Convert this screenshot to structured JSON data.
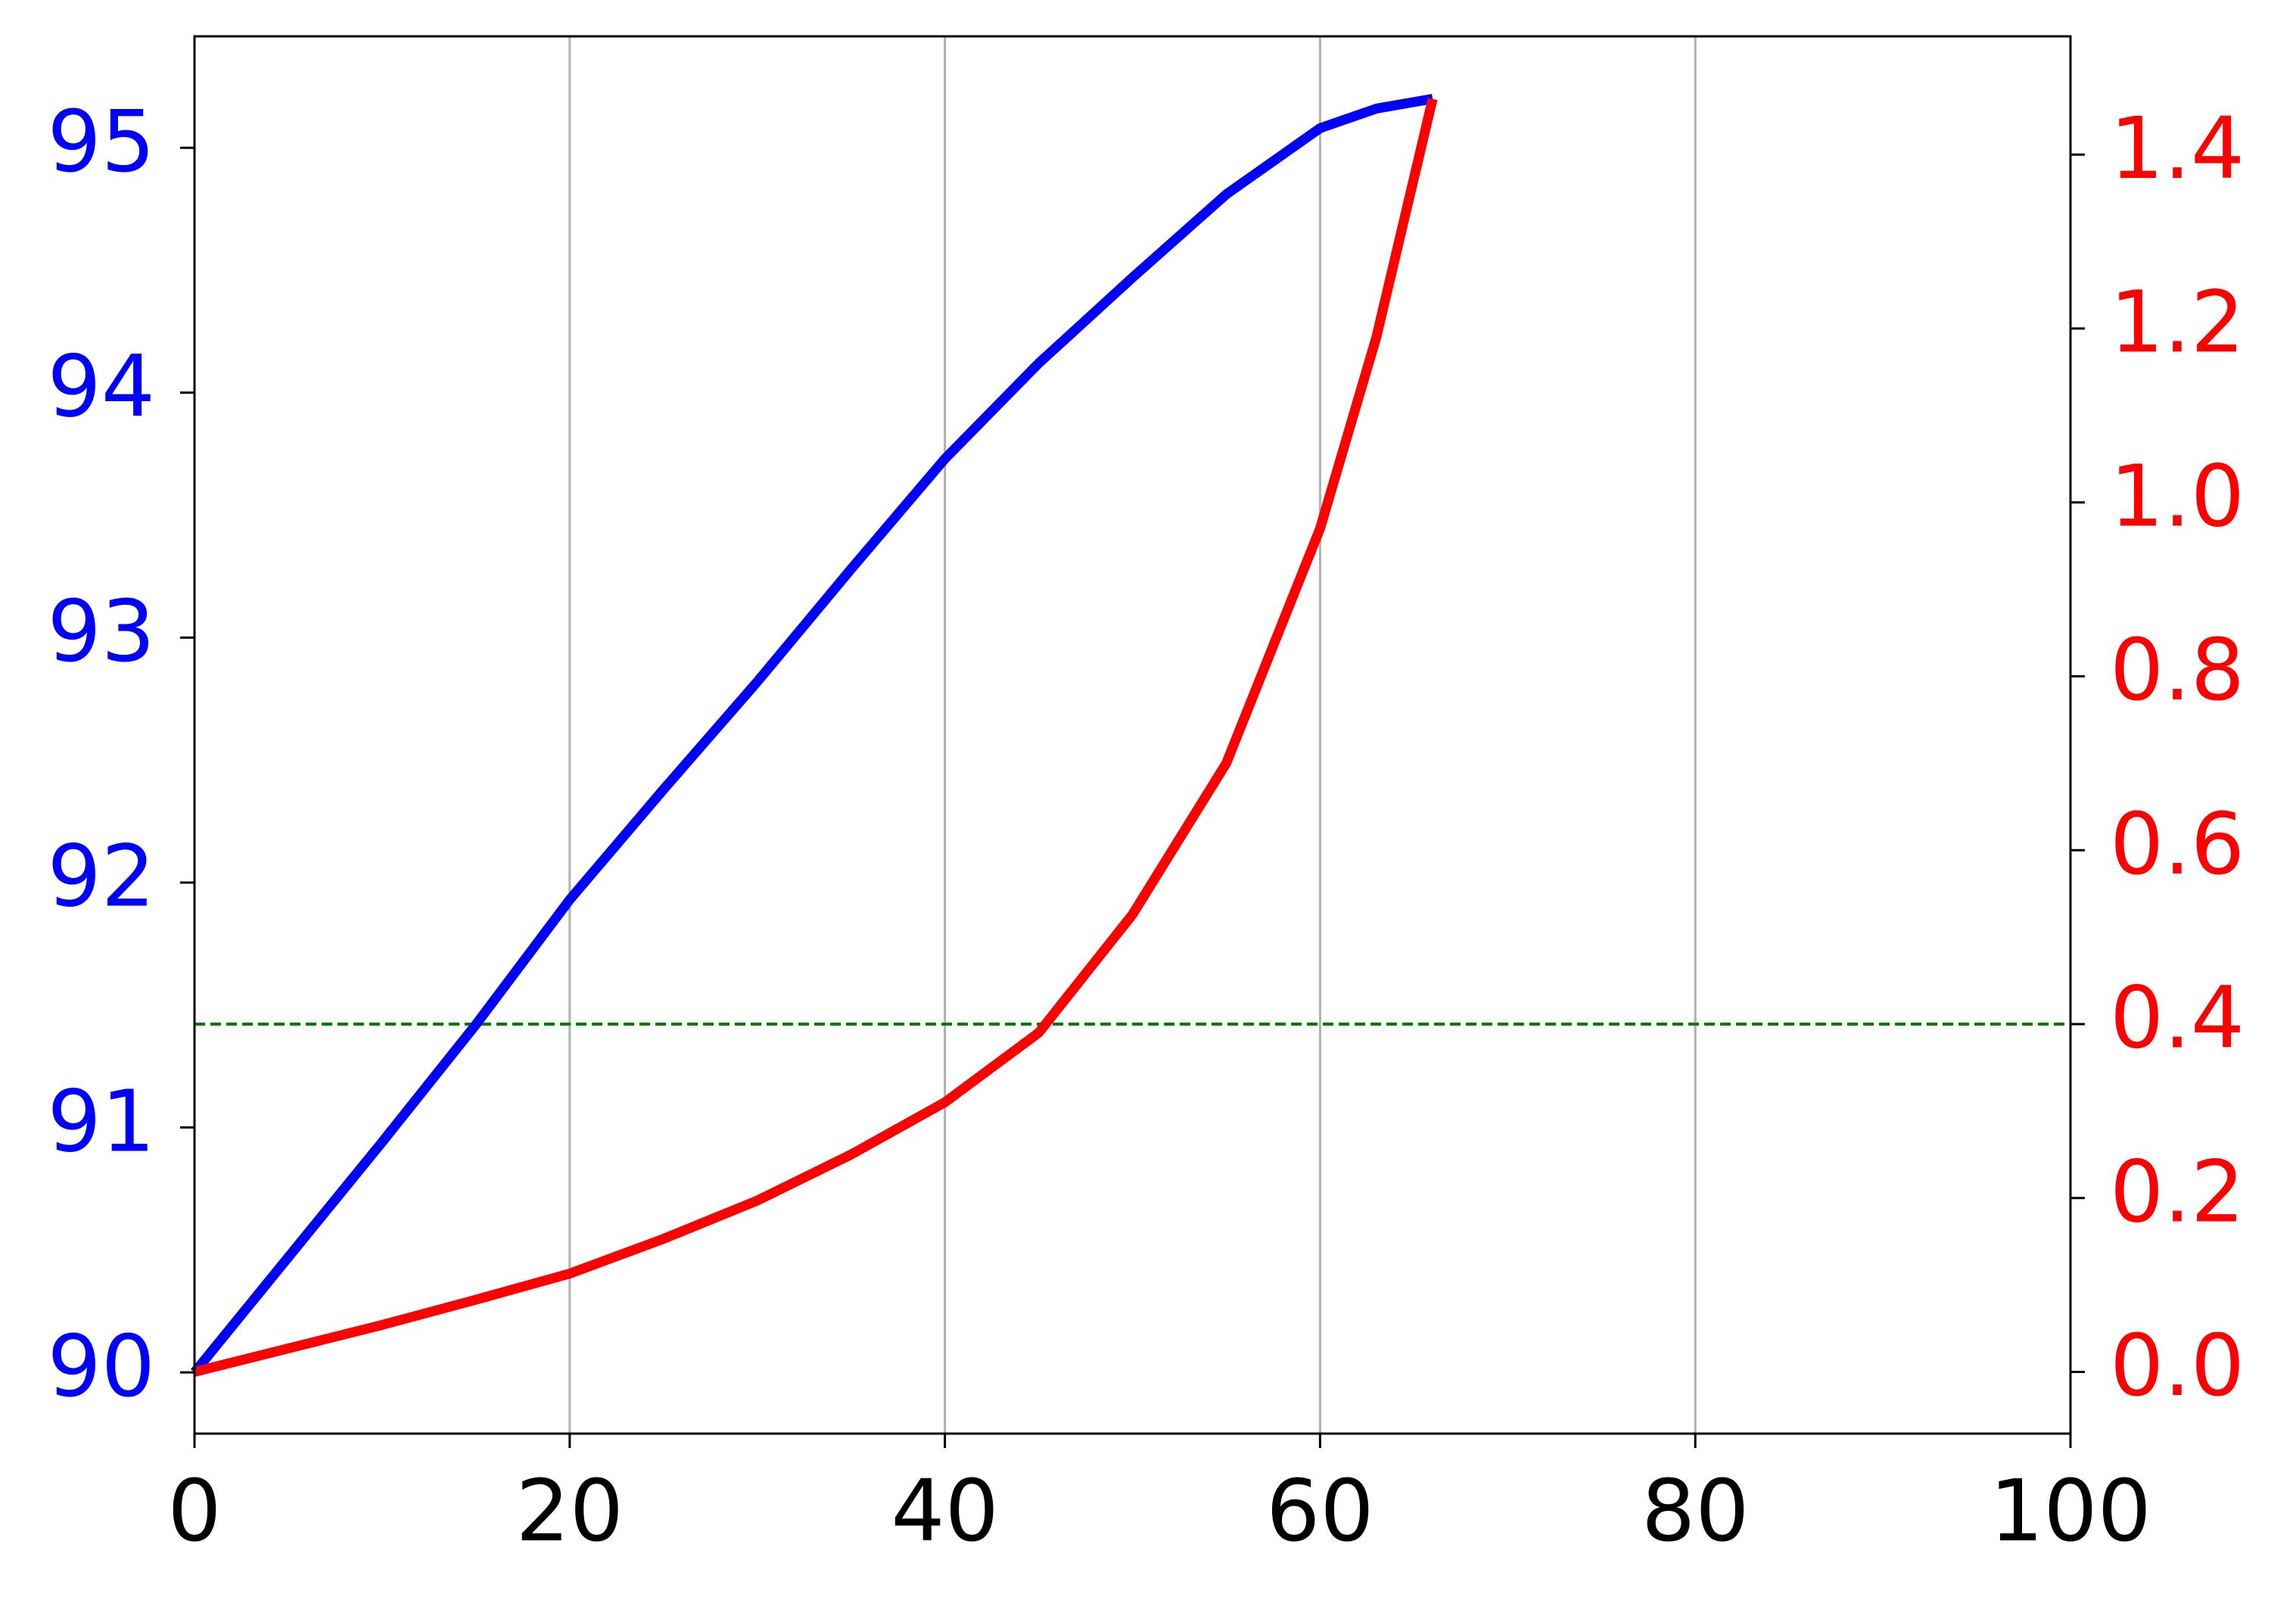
{
  "chart_data": {
    "type": "line",
    "x": [
      0,
      5,
      10,
      15,
      20,
      25,
      30,
      35,
      40,
      45,
      50,
      55,
      60,
      63,
      66
    ],
    "series": [
      {
        "color": "#0000ff",
        "axis": "y",
        "values": [
          90,
          90.47,
          90.94,
          91.42,
          91.93,
          92.38,
          92.82,
          93.28,
          93.73,
          94.12,
          94.47,
          94.81,
          95.08,
          95.16,
          95.2
        ]
      },
      {
        "color": "#ff0000",
        "axis": "y2",
        "values": [
          0,
          0.027,
          0.054,
          0.083,
          0.113,
          0.153,
          0.197,
          0.25,
          0.31,
          0.39,
          0.526,
          0.7,
          0.97,
          1.19,
          1.464
        ]
      }
    ],
    "hlines": [
      {
        "value": 0.4,
        "axis": "y2",
        "color": "#008000",
        "style": "dashed"
      }
    ],
    "xlim": [
      0,
      100
    ],
    "xticks": [
      0,
      20,
      40,
      60,
      80,
      100
    ],
    "ylim": [
      89.75,
      95.455
    ],
    "yticks": [
      90,
      91,
      92,
      93,
      94,
      95
    ],
    "ytick_color": "#0000ff",
    "y2lim": [
      -0.071,
      1.536
    ],
    "y2ticks": [
      {
        "value": 0,
        "label": "0.0"
      },
      0.2,
      0.4,
      0.6,
      0.8,
      {
        "value": 1,
        "label": "1.0"
      },
      1.2,
      1.4
    ],
    "y2tick_color": "#ff0000",
    "grid": "x"
  }
}
